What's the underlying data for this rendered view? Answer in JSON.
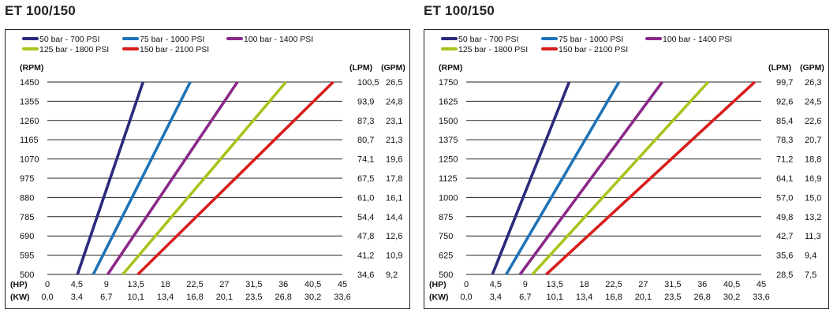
{
  "chart_data": [
    {
      "type": "line",
      "title": "ET 100/150",
      "legend": [
        {
          "name": "50 bar - 700 PSI",
          "color": "#2b2a7c"
        },
        {
          "name": "75 bar - 1000 PSI",
          "color": "#1f73b7"
        },
        {
          "name": "100 bar - 1400 PSI",
          "color": "#8a2888"
        },
        {
          "name": "125 bar - 1800 PSI",
          "color": "#a6c51c"
        },
        {
          "name": "150 bar - 2100 PSI",
          "color": "#d81e1e"
        }
      ],
      "legend_placement": "top-left",
      "grid": "horizontal",
      "y_left_label": "(RPM)",
      "y_right_label_1": "(LPM)",
      "y_right_label_2": "(GPM)",
      "x_label_1": "(HP)",
      "x_label_2": "(KW)",
      "xlim": [
        0,
        45
      ],
      "ylim": [
        500,
        1450
      ],
      "x_ticks_hp": [
        "0",
        "4,5",
        "9",
        "13,5",
        "18",
        "22,5",
        "27",
        "31,5",
        "36",
        "40,5",
        "45"
      ],
      "x_ticks_kw": [
        "0,0",
        "3,4",
        "6,7",
        "10,1",
        "13,4",
        "16,8",
        "20,1",
        "23,5",
        "26,8",
        "30,2",
        "33,6"
      ],
      "y_ticks_rpm": [
        "1450",
        "1355",
        "1260",
        "1165",
        "1070",
        "975",
        "880",
        "785",
        "690",
        "595",
        "500"
      ],
      "y_ticks_lpm": [
        "100,5",
        "93,9",
        "87,3",
        "80,7",
        "74,1",
        "67,5",
        "61,0",
        "54,4",
        "47,8",
        "41,2",
        "34,6"
      ],
      "y_ticks_gpm": [
        "26,5",
        "24,8",
        "23,1",
        "21,3",
        "19,6",
        "17,8",
        "16,1",
        "14,4",
        "12,6",
        "10,9",
        "9,2"
      ],
      "series": [
        {
          "name": "50 bar - 700 PSI",
          "x": [
            4.6,
            14.6
          ],
          "y": [
            500,
            1450
          ]
        },
        {
          "name": "75 bar - 1000 PSI",
          "x": [
            7.0,
            21.8
          ],
          "y": [
            500,
            1450
          ]
        },
        {
          "name": "100 bar - 1400 PSI",
          "x": [
            9.2,
            29.0
          ],
          "y": [
            500,
            1450
          ]
        },
        {
          "name": "125 bar - 1800 PSI",
          "x": [
            11.5,
            36.4
          ],
          "y": [
            500,
            1450
          ]
        },
        {
          "name": "150 bar - 2100 PSI",
          "x": [
            13.8,
            43.6
          ],
          "y": [
            500,
            1450
          ]
        }
      ]
    },
    {
      "type": "line",
      "title": "ET 100/150",
      "legend": [
        {
          "name": "50 bar - 700 PSI",
          "color": "#2b2a7c"
        },
        {
          "name": "75 bar - 1000 PSI",
          "color": "#1f73b7"
        },
        {
          "name": "100 bar - 1400 PSI",
          "color": "#8a2888"
        },
        {
          "name": "125 bar - 1800 PSI",
          "color": "#a6c51c"
        },
        {
          "name": "150 bar - 2100 PSI",
          "color": "#d81e1e"
        }
      ],
      "legend_placement": "top-left",
      "grid": "horizontal",
      "y_left_label": "(RPM)",
      "y_right_label_1": "(LPM)",
      "y_right_label_2": "(GPM)",
      "x_label_1": "(HP)",
      "x_label_2": "(KW)",
      "xlim": [
        0,
        45
      ],
      "ylim": [
        500,
        1750
      ],
      "x_ticks_hp": [
        "0",
        "4,5",
        "9",
        "13,5",
        "18",
        "22,5",
        "27",
        "31,5",
        "36",
        "40,5",
        "45"
      ],
      "x_ticks_kw": [
        "0,0",
        "3,4",
        "6,7",
        "10,1",
        "13,4",
        "16,8",
        "20,1",
        "23,5",
        "26,8",
        "30,2",
        "33,6"
      ],
      "y_ticks_rpm": [
        "1750",
        "1625",
        "1500",
        "1375",
        "1250",
        "1125",
        "1000",
        "875",
        "750",
        "625",
        "500"
      ],
      "y_ticks_lpm": [
        "99,7",
        "92,6",
        "85,4",
        "78,3",
        "71,2",
        "64,1",
        "57,0",
        "49,8",
        "42,7",
        "35,6",
        "28,5"
      ],
      "y_ticks_gpm": [
        "26,3",
        "24,5",
        "22,6",
        "20,7",
        "18,8",
        "16,9",
        "15,0",
        "13,2",
        "11,3",
        "9,4",
        "7,5"
      ],
      "series": [
        {
          "name": "50 bar - 700 PSI",
          "x": [
            4.0,
            15.7
          ],
          "y": [
            500,
            1750
          ]
        },
        {
          "name": "75 bar - 1000 PSI",
          "x": [
            6.1,
            23.3
          ],
          "y": [
            500,
            1750
          ]
        },
        {
          "name": "100 bar - 1400 PSI",
          "x": [
            8.2,
            29.9
          ],
          "y": [
            500,
            1750
          ]
        },
        {
          "name": "125 bar - 1800 PSI",
          "x": [
            10.1,
            36.9
          ],
          "y": [
            500,
            1750
          ]
        },
        {
          "name": "150 bar - 2100 PSI",
          "x": [
            12.2,
            44.0
          ],
          "y": [
            500,
            1750
          ]
        }
      ]
    }
  ]
}
